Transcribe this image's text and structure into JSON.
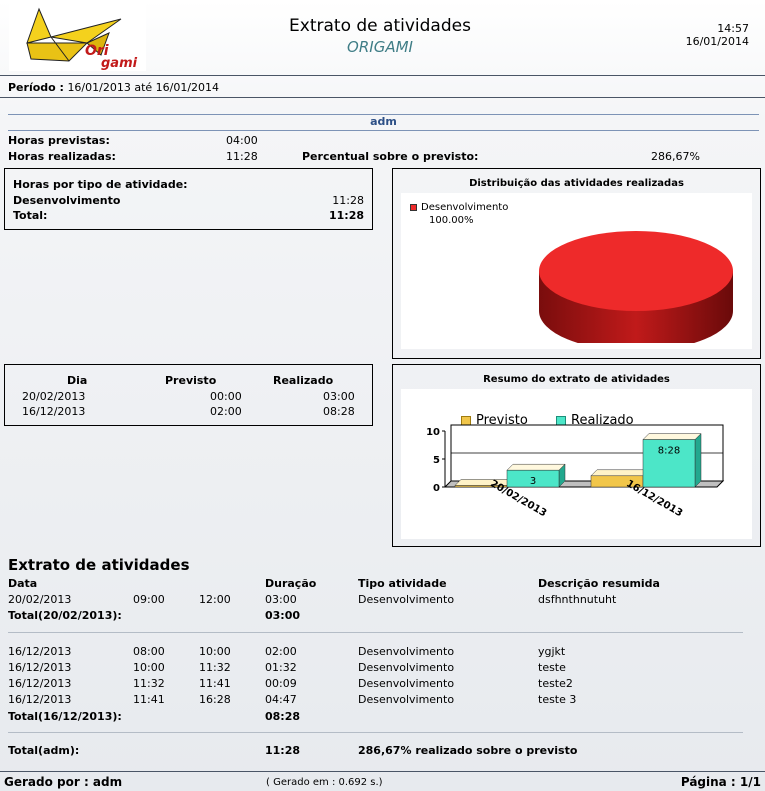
{
  "header": {
    "logo_text_line1": "Ori",
    "logo_text_line2": "gami",
    "title": "Extrato de atividades",
    "subtitle": "ORIGAMI",
    "time": "14:57",
    "date": "16/01/2014"
  },
  "periodo": {
    "label": "Período :",
    "value": "16/01/2013 até 16/01/2014"
  },
  "user": "adm",
  "summary": {
    "horas_previstas_label": "Horas previstas:",
    "horas_previstas_value": "04:00",
    "horas_realizadas_label": "Horas realizadas:",
    "horas_realizadas_value": "11:28",
    "percentual_label": "Percentual sobre o previsto:",
    "percentual_value": "286,67%"
  },
  "tipo_box": {
    "title": "Horas por tipo de atividade:",
    "rows": [
      {
        "label": "Desenvolvimento",
        "value": "11:28"
      }
    ],
    "total_label": "Total:",
    "total_value": "11:28"
  },
  "dia_box": {
    "headers": [
      "Dia",
      "Previsto",
      "Realizado"
    ],
    "rows": [
      [
        "20/02/2013",
        "00:00",
        "03:00"
      ],
      [
        "16/12/2013",
        "02:00",
        "08:28"
      ]
    ]
  },
  "colors": {
    "pie_red": "#ee2a2a",
    "previsto": "#f1c64a",
    "realizado": "#4ce6c8",
    "accent_blue": "#2c4f86"
  },
  "chart_data": [
    {
      "type": "pie",
      "title": "Distribuição das atividades realizadas",
      "legend": [
        "Desenvolvimento"
      ],
      "labels": [
        "Desenvolvimento"
      ],
      "values": [
        100.0
      ],
      "value_label": "100.00%",
      "legend_position": "top-left"
    },
    {
      "type": "bar",
      "title": "Resumo do extrato de atividades",
      "categories": [
        "20/02/2013",
        "16/12/2013"
      ],
      "series": [
        {
          "name": "Previsto",
          "values": [
            0.0,
            2.0
          ]
        },
        {
          "name": "Realizado",
          "values": [
            3.0,
            8.47
          ]
        }
      ],
      "data_labels": [
        [
          "",
          ""
        ],
        [
          "3",
          "8:28"
        ]
      ],
      "yticks": [
        "10",
        "5",
        "0"
      ],
      "ylim": [
        0,
        10
      ],
      "legend_position": "top",
      "grid": true
    }
  ],
  "extrato": {
    "title": "Extrato de atividades",
    "headers": {
      "data": "Data",
      "duracao": "Duração",
      "tipo": "Tipo atividade",
      "descricao": "Descrição resumida"
    },
    "groups": [
      {
        "rows": [
          [
            "20/02/2013",
            "09:00",
            "12:00",
            "03:00",
            "Desenvolvimento",
            "dsfhnthnutuht"
          ]
        ],
        "total_label": "Total(20/02/2013):",
        "total_value": "03:00"
      },
      {
        "rows": [
          [
            "16/12/2013",
            "08:00",
            "10:00",
            "02:00",
            "Desenvolvimento",
            "ygjkt"
          ],
          [
            "16/12/2013",
            "10:00",
            "11:32",
            "01:32",
            "Desenvolvimento",
            "teste"
          ],
          [
            "16/12/2013",
            "11:32",
            "11:41",
            "00:09",
            "Desenvolvimento",
            "teste2"
          ],
          [
            "16/12/2013",
            "11:41",
            "16:28",
            "04:47",
            "Desenvolvimento",
            "teste 3"
          ]
        ],
        "total_label": "Total(16/12/2013):",
        "total_value": "08:28"
      }
    ],
    "grand_total_label": "Total(adm):",
    "grand_total_value": "11:28",
    "grand_total_pct": "286,67%",
    "grand_total_text": "realizado sobre o previsto"
  },
  "footer": {
    "gerado_por": "Gerado por : adm",
    "gerado_em": "( Gerado em : 0.692 s.)",
    "pagina": "Página : 1/1"
  }
}
